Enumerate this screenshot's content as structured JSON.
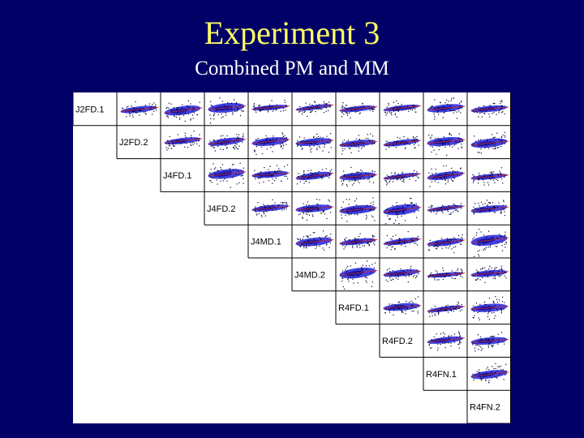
{
  "slide": {
    "title": "Experiment 3",
    "subtitle": "Combined PM and MM"
  },
  "matrix": {
    "labels": [
      "J2FD.1",
      "J2FD.2",
      "J4FD.1",
      "J4FD.2",
      "J4MD.1",
      "J4MD.2",
      "R4FD.1",
      "R4FD.2",
      "R4FN.1",
      "R4FN.2"
    ],
    "colors": {
      "background": "#000066",
      "title": "#ffff66",
      "cloud": "#2222dd",
      "cloud_dark": "#000088",
      "points": "#000033",
      "trend": "#cc2222"
    }
  }
}
